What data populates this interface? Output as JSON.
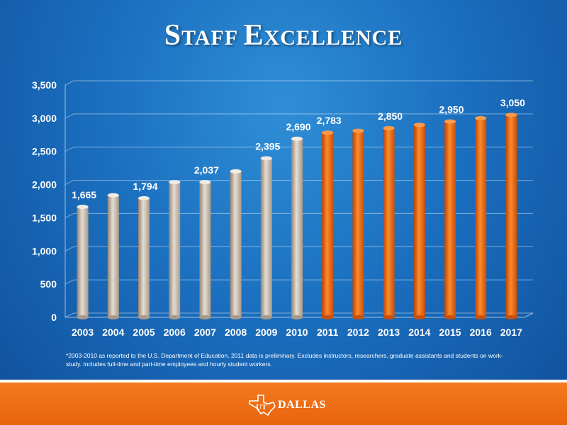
{
  "slide": {
    "title_lead1": "S",
    "title_rest1": "TAFF ",
    "title_lead2": "E",
    "title_rest2": "XCELLENCE",
    "footnote": "*2003-2010 as reported to the U.S. Department of Education. 2011 data is preliminary.  Excludes instructors, researchers, graduate assistants and students on work-study. Includes full-time and part-time employees and hourly student workers.",
    "logo_text": "DALLAS",
    "logo_mark": "UT"
  },
  "colors": {
    "historical_bar": "#cbbfb2",
    "projected_bar": "#f26a0f",
    "footer": "#f47a20",
    "background": "#1b6fbf"
  },
  "chart_data": {
    "type": "bar",
    "title": "Staff Excellence",
    "categories": [
      "2003",
      "2004",
      "2005",
      "2006",
      "2007",
      "2008",
      "2009",
      "2010",
      "2011",
      "2012",
      "2013",
      "2014",
      "2015",
      "2016",
      "2017"
    ],
    "series": [
      {
        "values": [
          1665,
          1840,
          1794,
          2037,
          2037,
          2200,
          2395,
          2690,
          2783,
          2810,
          2850,
          2900,
          2950,
          3000,
          3050
        ]
      }
    ],
    "data_labels": [
      {
        "category": "2003",
        "text": "1,665"
      },
      {
        "category": "2005",
        "text": "1,794"
      },
      {
        "category": "2007",
        "text": "2,037"
      },
      {
        "category": "2009",
        "text": "2,395"
      },
      {
        "category": "2010",
        "text": "2,690"
      },
      {
        "category": "2011",
        "text": "2,783"
      },
      {
        "category": "2013",
        "text": "2,850"
      },
      {
        "category": "2015",
        "text": "2,950"
      },
      {
        "category": "2017",
        "text": "3,050"
      }
    ],
    "projected_from": "2011",
    "ylim": [
      0,
      3500
    ],
    "yticks": [
      0,
      500,
      1000,
      1500,
      2000,
      2500,
      3000,
      3500
    ],
    "ytick_labels": [
      "0",
      "500",
      "1,000",
      "1,500",
      "2,000",
      "2,500",
      "3,000",
      "3,500"
    ],
    "grid": true,
    "legend": "none"
  }
}
